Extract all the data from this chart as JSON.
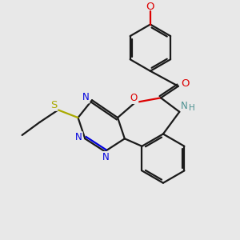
{
  "background_color": "#e8e8e8",
  "bond_color": "#1a1a1a",
  "N_color": "#0000dd",
  "O_color": "#dd0000",
  "S_color": "#aaaa00",
  "NH_color": "#4a9090",
  "figsize": [
    3.0,
    3.0
  ],
  "dpi": 100,
  "xlim": [
    0,
    10
  ],
  "ylim": [
    0,
    10
  ]
}
